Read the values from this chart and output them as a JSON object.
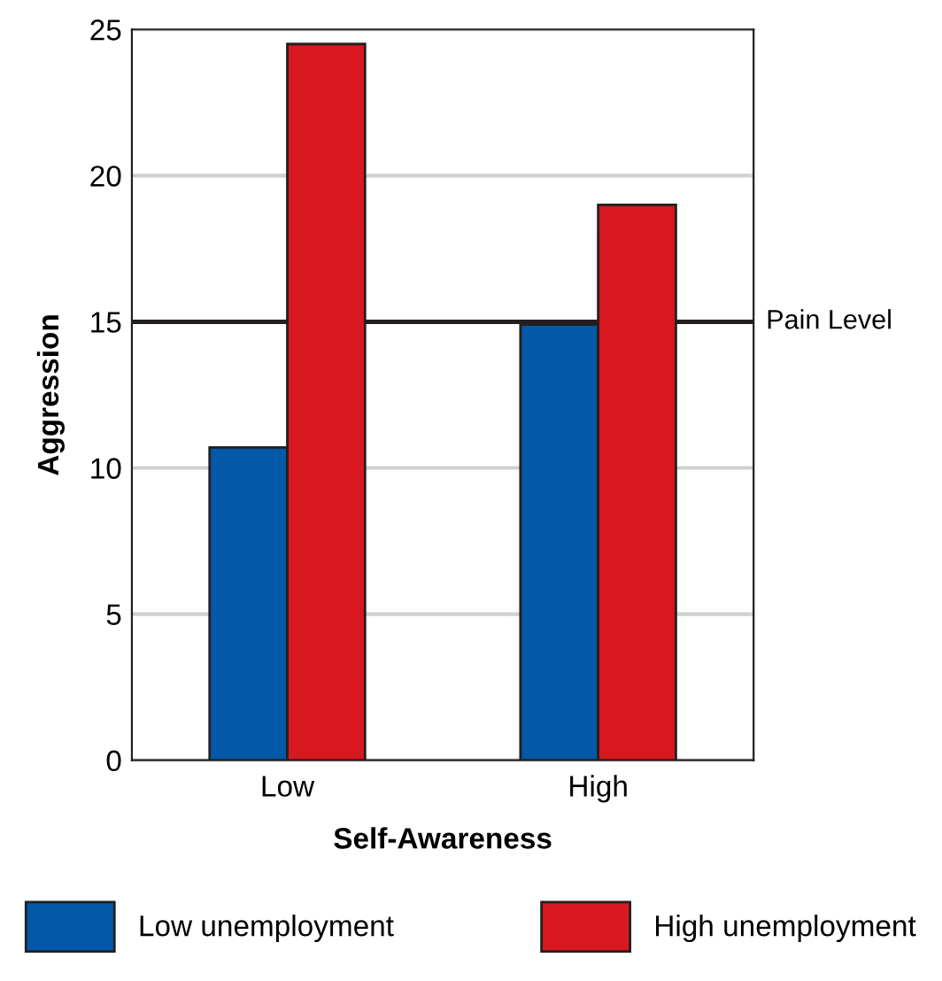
{
  "chart_data": {
    "type": "bar",
    "xlabel": "Self-Awareness",
    "ylabel": "Aggression",
    "categories": [
      "Low",
      "High"
    ],
    "series": [
      {
        "name": "Low unemployment",
        "color": "#0358a8",
        "values": [
          10.7,
          14.9
        ]
      },
      {
        "name": "High unemployment",
        "color": "#d7191f",
        "values": [
          24.5,
          19.0
        ]
      }
    ],
    "ylim": [
      0,
      25
    ],
    "yticks": [
      0,
      5,
      10,
      15,
      20,
      25
    ],
    "grid": "y",
    "legend": "bottom",
    "ref_lines": [
      {
        "axis": "y",
        "value": 15,
        "label": "Pain Level",
        "color": "#231f20"
      }
    ]
  }
}
